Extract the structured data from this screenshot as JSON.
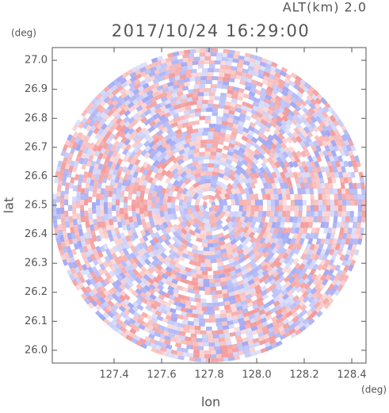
{
  "chart_data": {
    "type": "ppi",
    "title": "2017/10/24 16:29:00",
    "subtitle": "ALT(km) 2.0",
    "y_unit": "(deg)",
    "x_unit": "(deg)",
    "ylabel": "lat",
    "xlabel": "lon",
    "xlim": [
      127.14,
      128.46
    ],
    "ylim": [
      25.956,
      27.044
    ],
    "xticks": [
      127.4,
      127.6,
      127.8,
      {
        "value": 128,
        "label": "128.0"
      },
      128.2,
      128.4
    ],
    "yticks": [
      {
        "value": 26,
        "label": "26.0"
      },
      26.1,
      26.2,
      26.3,
      26.4,
      26.5,
      26.6,
      26.7,
      26.8,
      26.9,
      {
        "value": 27,
        "label": "27.0"
      }
    ]
  }
}
